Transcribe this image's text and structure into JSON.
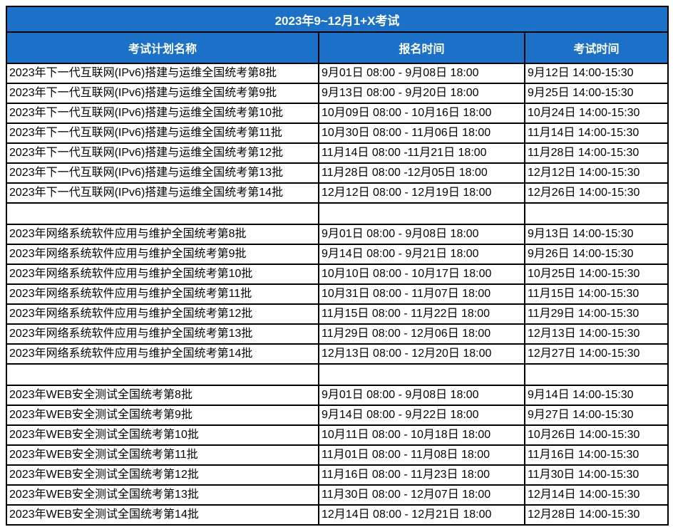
{
  "title": "2023年9~12月1+X考试",
  "columns": [
    {
      "label": "考试计划名称"
    },
    {
      "label": "报名时间"
    },
    {
      "label": "考试时间"
    }
  ],
  "colors": {
    "header_bg": "#1B70C8",
    "header_text": "#FFFFFF",
    "border": "#000000",
    "body_text": "#000000",
    "body_bg": "#FFFFFF"
  },
  "sections": [
    {
      "rows": [
        {
          "name": "2023年下一代互联网(IPv6)搭建与运维全国统考第8批",
          "registration": "9月01日 08:00 - 9月08日 18:00",
          "exam": "9月12日 14:00-15:30"
        },
        {
          "name": "2023年下一代互联网(IPv6)搭建与运维全国统考第9批",
          "registration": "9月13日 08:00 - 9月20日 18:00",
          "exam": "9月25日 14:00-15:30"
        },
        {
          "name": "2023年下一代互联网(IPv6)搭建与运维全国统考第10批",
          "registration": "10月09日 08:00 - 10月16日 18:00",
          "exam": "10月24日 14:00-15:30"
        },
        {
          "name": "2023年下一代互联网(IPv6)搭建与运维全国统考第11批",
          "registration": "10月30日 08:00 - 11月06日 18:00",
          "exam": "11月14日 14:00-15:30"
        },
        {
          "name": "2023年下一代互联网(IPv6)搭建与运维全国统考第12批",
          "registration": "11月14日 08:00 -11月21日 18:00",
          "exam": "11月28日 14:00-15:30"
        },
        {
          "name": "2023年下一代互联网(IPv6)搭建与运维全国统考第13批",
          "registration": "11月28日 08:00 -12月05日 18:00",
          "exam": "12月12日 14:00-15:30"
        },
        {
          "name": "2023年下一代互联网(IPv6)搭建与运维全国统考第14批",
          "registration": "12月12日 08:00 - 12月19日 18:00",
          "exam": "12月26日 14:00-15:30"
        }
      ]
    },
    {
      "rows": [
        {
          "name": "2023年网络系统软件应用与维护全国统考第8批",
          "registration": "9月01日 08:00 - 9月08日 18:00",
          "exam": "9月13日 14:00-15:30"
        },
        {
          "name": "2023年网络系统软件应用与维护全国统考第9批",
          "registration": "9月14日 08:00 - 9月21日 18:00",
          "exam": "9月26日 14:00-15:30"
        },
        {
          "name": "2023年网络系统软件应用与维护全国统考第10批",
          "registration": "10月10日 08:00 - 10月17日 18:00",
          "exam": "10月25日 14:00-15:30"
        },
        {
          "name": "2023年网络系统软件应用与维护全国统考第11批",
          "registration": "10月31日 08:00 - 11月07日 18:00",
          "exam": "11月15日 14:00-15:30"
        },
        {
          "name": "2023年网络系统软件应用与维护全国统考第12批",
          "registration": "11月15日 08:00 - 11月22日 18:00",
          "exam": "11月29日 14:00-15:30"
        },
        {
          "name": "2023年网络系统软件应用与维护全国统考第13批",
          "registration": "11月29日 08:00 - 12月06日 18:00",
          "exam": "12月13日 14:00-15:30"
        },
        {
          "name": "2023年网络系统软件应用与维护全国统考第14批",
          "registration": "12月13日 08:00 - 12月20日 18:00",
          "exam": "12月27日 14:00-15:30"
        }
      ]
    },
    {
      "rows": [
        {
          "name": "2023年WEB安全测试全国统考第8批",
          "registration": "9月01日 08:00 - 9月08日 18:00",
          "exam": "9月14日 14:00-15:30"
        },
        {
          "name": "2023年WEB安全测试全国统考第9批",
          "registration": "9月14日 08:00 - 9月22日 18:00",
          "exam": "9月27日 14:00-15:30"
        },
        {
          "name": "2023年WEB安全测试全国统考第10批",
          "registration": "10月11日 08:00 - 10月18日 18:00",
          "exam": "10月26日 14:00-15:30"
        },
        {
          "name": "2023年WEB安全测试全国统考第11批",
          "registration": "11月01日 08:00 - 11月08日 18:00",
          "exam": "11月16日 14:00-15:30"
        },
        {
          "name": "2023年WEB安全测试全国统考第12批",
          "registration": "11月16日 08:00 - 11月23日 18:00",
          "exam": "11月30日 14:00-15:30"
        },
        {
          "name": "2023年WEB安全测试全国统考第13批",
          "registration": "11月30日 08:00 - 12月07日 18:00",
          "exam": "12月14日 14:00-15:30"
        },
        {
          "name": "2023年WEB安全测试全国统考第14批",
          "registration": "12月14日 08:00 - 12月21日 18:00",
          "exam": "12月28日 14:00-15:30"
        }
      ]
    }
  ]
}
